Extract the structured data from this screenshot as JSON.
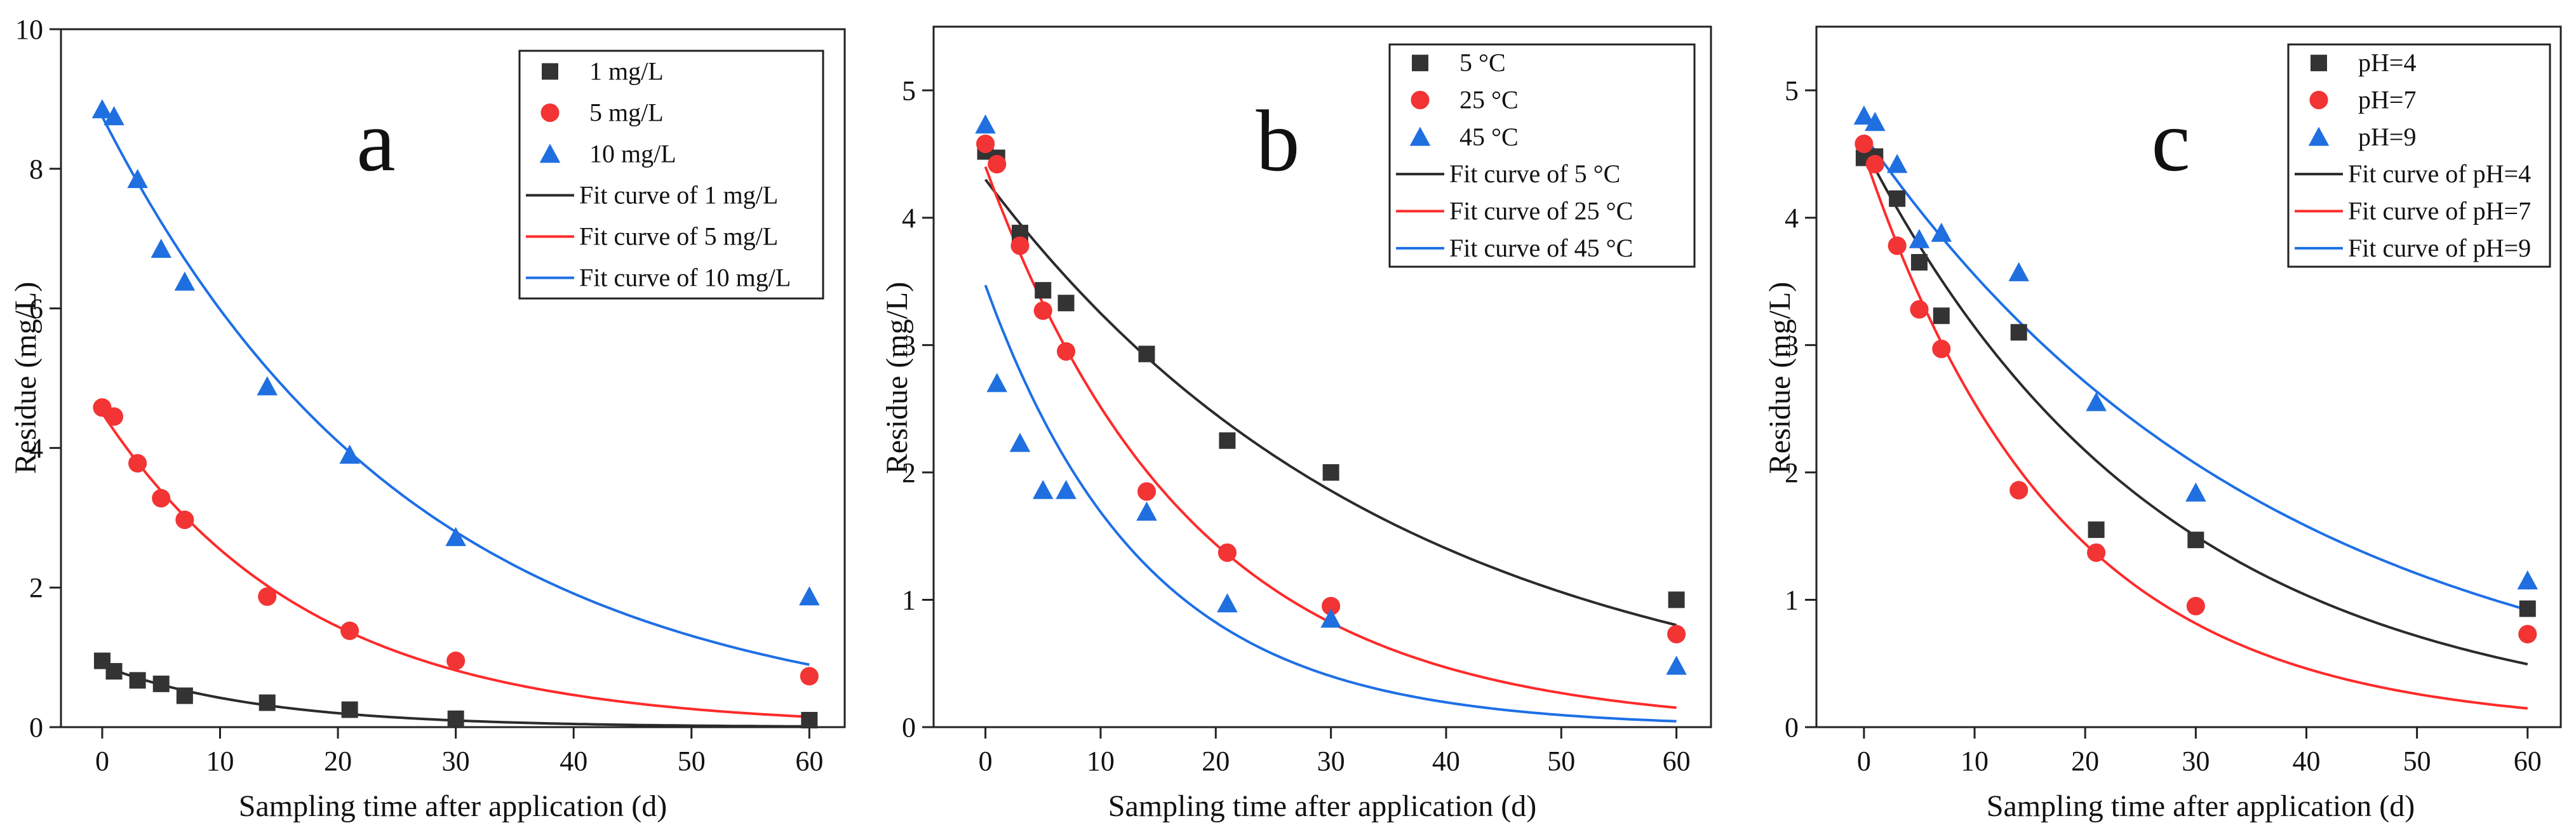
{
  "colors": {
    "black": "#333333",
    "red": "#f23434",
    "blue": "#1f6fe0",
    "curve_black": "#2b2b2b",
    "curve_red": "#ff2a2a",
    "curve_blue": "#1e6fe6"
  },
  "chart_data": [
    {
      "type": "scatter",
      "panel_label": "a",
      "xlabel": "Sampling time after application (d)",
      "ylabel": "Residue (mg/L)",
      "xlim": [
        -3.5,
        63
      ],
      "ylim": [
        0,
        10
      ],
      "xticks": [
        0,
        10,
        20,
        30,
        40,
        50,
        60
      ],
      "yticks": [
        0,
        2,
        4,
        6,
        8,
        10
      ],
      "legend_position": "top-right",
      "series": [
        {
          "name": "1 mg/L",
          "marker": "square",
          "color": "#333333",
          "x": [
            0,
            1,
            3,
            5,
            7,
            14,
            21,
            30,
            60
          ],
          "y": [
            0.95,
            0.8,
            0.67,
            0.62,
            0.45,
            0.35,
            0.25,
            0.12,
            0.1
          ]
        },
        {
          "name": "5 mg/L",
          "marker": "circle",
          "color": "#f23434",
          "x": [
            0,
            1,
            3,
            5,
            7,
            14,
            21,
            30,
            60
          ],
          "y": [
            4.58,
            4.45,
            3.78,
            3.28,
            2.97,
            1.87,
            1.38,
            0.95,
            0.73
          ]
        },
        {
          "name": "10 mg/L",
          "marker": "triangle",
          "color": "#1f6fe0",
          "x": [
            0,
            1,
            3,
            5,
            7,
            14,
            21,
            30,
            60
          ],
          "y": [
            8.85,
            8.75,
            7.85,
            6.85,
            6.38,
            4.88,
            3.9,
            2.72,
            1.87
          ]
        }
      ],
      "fits": [
        {
          "name": "Fit curve of 1 mg/L",
          "color": "#2b2b2b",
          "c0": 0.88,
          "k": 0.074,
          "x_end": 60
        },
        {
          "name": "Fit curve of 5 mg/L",
          "color": "#ff2a2a",
          "c0": 4.5,
          "k": 0.057,
          "x_end": 60
        },
        {
          "name": "Fit curve of 10 mg/L",
          "color": "#1e6fe6",
          "c0": 8.75,
          "k": 0.038,
          "x_end": 60
        }
      ]
    },
    {
      "type": "scatter",
      "panel_label": "b",
      "xlabel": "Sampling time after application (d)",
      "ylabel": "Residue (mg/L)",
      "xlim": [
        -4.5,
        63
      ],
      "ylim": [
        0,
        5.5
      ],
      "xticks": [
        0,
        10,
        20,
        30,
        40,
        50,
        60
      ],
      "yticks": [
        0,
        1,
        2,
        3,
        4,
        5
      ],
      "legend_position": "top-right",
      "series": [
        {
          "name": "5 °C",
          "marker": "square",
          "color": "#333333",
          "x": [
            0,
            1,
            3,
            5,
            7,
            14,
            21,
            30,
            60
          ],
          "y": [
            4.52,
            4.47,
            3.88,
            3.43,
            3.33,
            2.93,
            2.25,
            2.0,
            1.0
          ]
        },
        {
          "name": "25 °C",
          "marker": "circle",
          "color": "#f23434",
          "x": [
            0,
            1,
            3,
            5,
            7,
            14,
            21,
            30,
            60
          ],
          "y": [
            4.58,
            4.42,
            3.78,
            3.27,
            2.95,
            1.85,
            1.37,
            0.95,
            0.73
          ]
        },
        {
          "name": "45 °C",
          "marker": "triangle",
          "color": "#1f6fe0",
          "x": [
            0,
            1,
            3,
            5,
            7,
            14,
            21,
            30,
            60
          ],
          "y": [
            4.73,
            2.7,
            2.23,
            1.86,
            1.86,
            1.69,
            0.97,
            0.85,
            0.48
          ]
        }
      ],
      "fits": [
        {
          "name": "Fit curve of 5 °C",
          "color": "#2b2b2b",
          "c0": 4.3,
          "k": 0.028,
          "x_end": 60
        },
        {
          "name": "Fit curve of 25 °C",
          "color": "#ff2a2a",
          "c0": 4.4,
          "k": 0.056,
          "x_end": 60
        },
        {
          "name": "Fit curve of 45 °C",
          "color": "#1e6fe6",
          "c0": 3.47,
          "k": 0.072,
          "x_end": 60
        }
      ]
    },
    {
      "type": "scatter",
      "panel_label": "c",
      "xlabel": "Sampling time after application (d)",
      "ylabel": "Residue (mg/L)",
      "xlim": [
        -4.3,
        63
      ],
      "ylim": [
        0,
        5.5
      ],
      "xticks": [
        0,
        10,
        20,
        30,
        40,
        50,
        60
      ],
      "yticks": [
        0,
        1,
        2,
        3,
        4,
        5
      ],
      "legend_position": "top-right",
      "series": [
        {
          "name": "pH=4",
          "marker": "square",
          "color": "#333333",
          "x": [
            0,
            1,
            3,
            5,
            7,
            14,
            21,
            30,
            60
          ],
          "y": [
            4.47,
            4.48,
            4.15,
            3.65,
            3.23,
            3.1,
            1.55,
            1.47,
            0.93
          ]
        },
        {
          "name": "pH=7",
          "marker": "circle",
          "color": "#f23434",
          "x": [
            0,
            1,
            3,
            5,
            7,
            14,
            21,
            30,
            60
          ],
          "y": [
            4.58,
            4.42,
            3.78,
            3.28,
            2.97,
            1.86,
            1.37,
            0.95,
            0.73
          ]
        },
        {
          "name": "pH=9",
          "marker": "triangle",
          "color": "#1f6fe0",
          "x": [
            0,
            1,
            3,
            5,
            7,
            14,
            21,
            30,
            60
          ],
          "y": [
            4.8,
            4.75,
            4.42,
            3.83,
            3.88,
            3.57,
            2.55,
            1.84,
            1.15
          ]
        }
      ],
      "fits": [
        {
          "name": "Fit curve of pH=4",
          "color": "#2b2b2b",
          "c0": 4.55,
          "k": 0.037,
          "x_end": 60
        },
        {
          "name": "Fit curve of pH=7",
          "color": "#ff2a2a",
          "c0": 4.5,
          "k": 0.057,
          "x_end": 60
        },
        {
          "name": "Fit curve of pH=9",
          "color": "#1e6fe6",
          "c0": 4.65,
          "k": 0.027,
          "x_end": 60
        }
      ]
    }
  ]
}
